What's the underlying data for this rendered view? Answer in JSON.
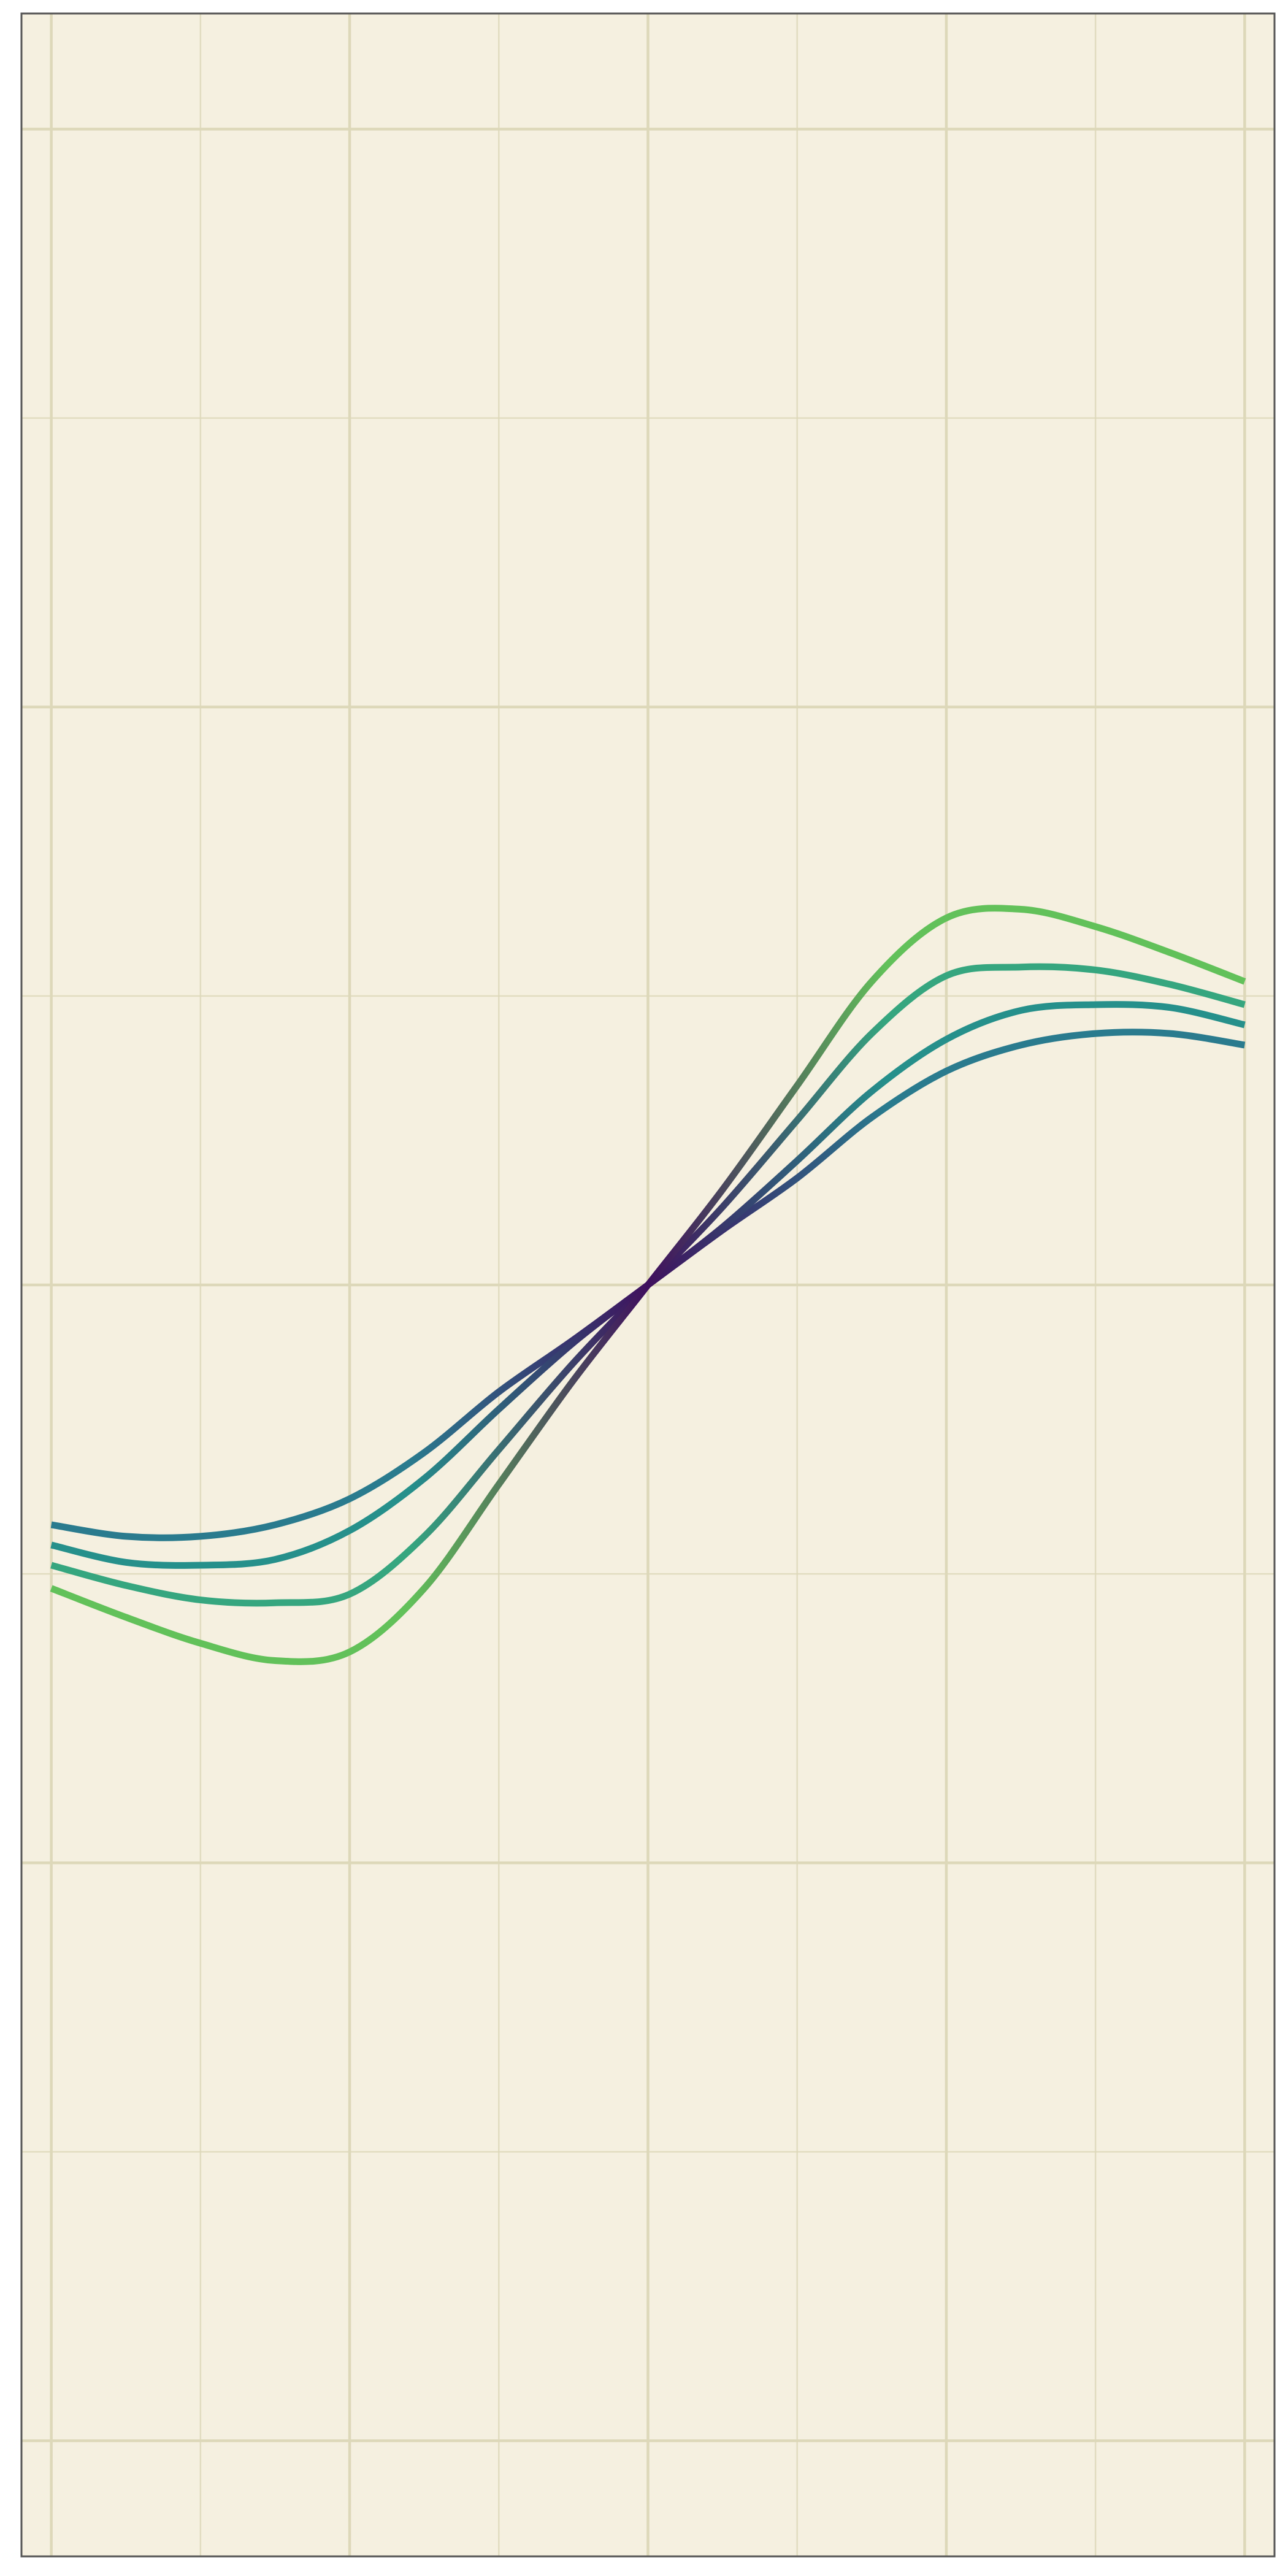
{
  "chart_data": {
    "type": "line",
    "title": "",
    "xlabel": "",
    "ylabel": "",
    "xlim": [
      -4.2,
      4.2
    ],
    "ylim": [
      -4.4,
      4.4
    ],
    "grid": true,
    "x_major_ticks": [
      -4,
      -2,
      0,
      2,
      4
    ],
    "x_minor_ticks": [
      -3,
      -1,
      1,
      3
    ],
    "y_major_ticks": [
      -4,
      -2,
      0,
      2,
      4
    ],
    "y_minor_ticks": [
      -3,
      -1,
      1,
      3
    ],
    "legend": "none",
    "series": [
      {
        "color": "#2a7b8e",
        "x": [
          -4,
          -3.5,
          -3,
          -2.5,
          -2,
          -1.5,
          -1,
          -0.5,
          0,
          0.5,
          1,
          1.5,
          2,
          2.5,
          3,
          3.5,
          4
        ],
        "y": [
          -0.83,
          -0.87,
          -0.87,
          -0.83,
          -0.74,
          -0.58,
          -0.37,
          -0.19,
          0.0,
          0.19,
          0.37,
          0.58,
          0.74,
          0.83,
          0.87,
          0.87,
          0.83
        ]
      },
      {
        "color": "#26908b",
        "x": [
          -4,
          -3.5,
          -3,
          -2.5,
          -2,
          -1.5,
          -1,
          -0.5,
          0,
          0.5,
          1,
          1.5,
          2,
          2.5,
          3,
          3.5,
          4
        ],
        "y": [
          -0.9,
          -0.96,
          -0.97,
          -0.95,
          -0.85,
          -0.67,
          -0.43,
          -0.2,
          0.0,
          0.2,
          0.43,
          0.67,
          0.85,
          0.95,
          0.97,
          0.96,
          0.9
        ]
      },
      {
        "color": "#36a67f",
        "x": [
          -4,
          -3.5,
          -3,
          -2.5,
          -2,
          -1.5,
          -1,
          -0.5,
          0,
          0.5,
          1,
          1.5,
          2,
          2.5,
          3,
          3.5,
          4
        ],
        "y": [
          -0.97,
          -1.04,
          -1.09,
          -1.1,
          -1.07,
          -0.87,
          -0.57,
          -0.27,
          0.0,
          0.27,
          0.57,
          0.87,
          1.07,
          1.1,
          1.09,
          1.04,
          0.97
        ]
      },
      {
        "color": "#62c15a",
        "x": [
          -4,
          -3.5,
          -3,
          -2.5,
          -2,
          -1.5,
          -1,
          -0.5,
          0,
          0.5,
          1,
          1.5,
          2,
          2.5,
          3,
          3.5,
          4
        ],
        "y": [
          -1.05,
          -1.15,
          -1.24,
          -1.3,
          -1.27,
          -1.05,
          -0.69,
          -0.33,
          0.0,
          0.33,
          0.69,
          1.05,
          1.27,
          1.3,
          1.24,
          1.15,
          1.05
        ]
      }
    ],
    "colors": {
      "background": "#f5f0e0",
      "grid": "#ddd8b9",
      "frame": "#555555",
      "gradient_center": "#3f0f5e"
    }
  }
}
